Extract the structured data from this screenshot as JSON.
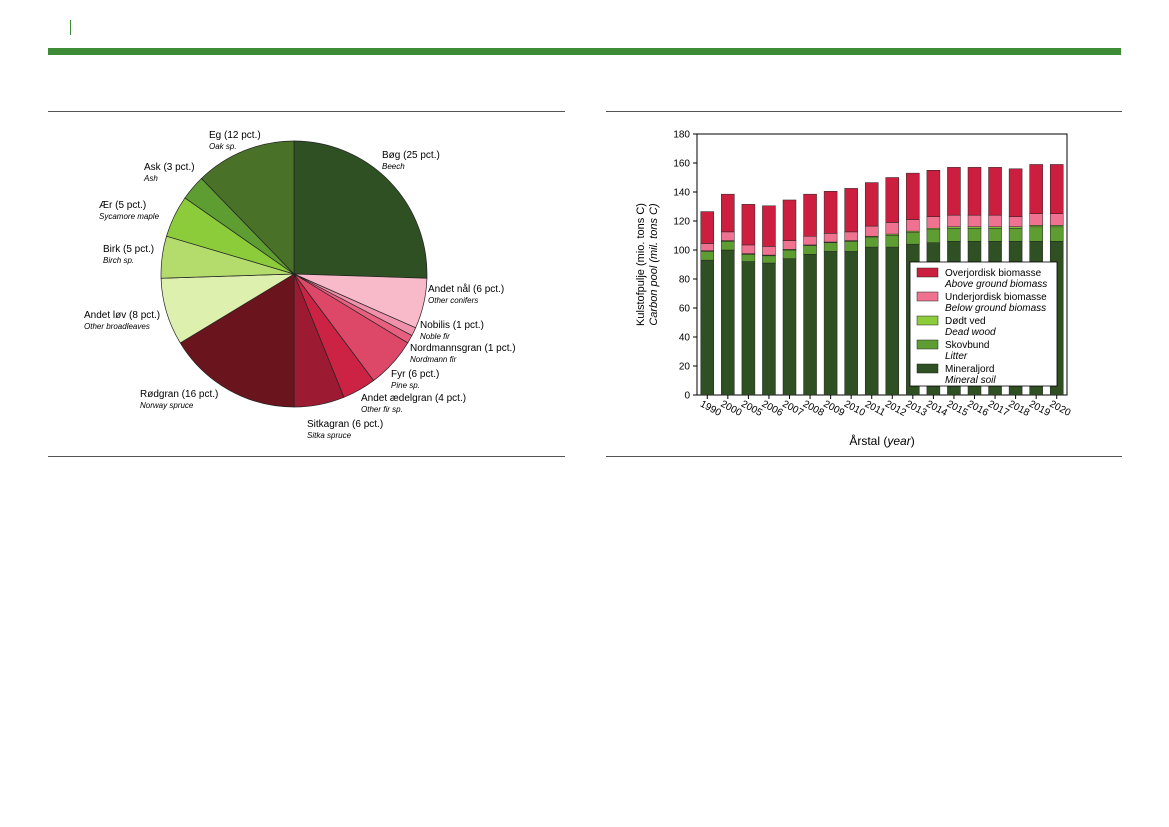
{
  "pie": {
    "chart_data": {
      "type": "pie",
      "slices": [
        {
          "label": "Bøg (25 pct.)",
          "sublabel": "Beech",
          "value": 25,
          "color": "#2f5022"
        },
        {
          "label": "Andet nål (6 pct.)",
          "sublabel": "Other conifers",
          "value": 6,
          "color": "#f8b9c9"
        },
        {
          "label": "Nobilis (1 pct.)",
          "sublabel": "Noble fir",
          "value": 1,
          "color": "#ef91ab"
        },
        {
          "label": "Nordmannsgran (1 pct.)",
          "sublabel": "Nordmann fir",
          "value": 1,
          "color": "#e8607f"
        },
        {
          "label": "Fyr (6 pct.)",
          "sublabel": "Pine sp.",
          "value": 6,
          "color": "#de4868"
        },
        {
          "label": "Andet ædelgran (4 pct.)",
          "sublabel": "Other fir sp.",
          "value": 4,
          "color": "#cc2243"
        },
        {
          "label": "Sitkagran (6 pct.)",
          "sublabel": "Sitka spruce",
          "value": 6,
          "color": "#9c1b33"
        },
        {
          "label": "Rødgran (16 pct.)",
          "sublabel": "Norway spruce",
          "value": 16,
          "color": "#6a151d"
        },
        {
          "label": "Andet løv (8 pct.)",
          "sublabel": "Other broadleaves",
          "value": 8,
          "color": "#ddf0ad"
        },
        {
          "label": "Birk (5 pct.)",
          "sublabel": "Birch sp.",
          "value": 5,
          "color": "#b3dc6d"
        },
        {
          "label": "Ær (5 pct.)",
          "sublabel": "Sycamore maple",
          "value": 5,
          "color": "#8ccb3a"
        },
        {
          "label": "Ask (3 pct.)",
          "sublabel": "Ash",
          "value": 3,
          "color": "#5e9d31"
        },
        {
          "label": "Eg (12 pct.)",
          "sublabel": "Oak sp.",
          "value": 12,
          "color": "#4a7128"
        }
      ]
    }
  },
  "bar": {
    "chart_data": {
      "type": "bar",
      "stacked": true,
      "categories": [
        "1990",
        "2000",
        "2005",
        "2006",
        "2007",
        "2008",
        "2009",
        "2010",
        "2011",
        "2012",
        "2013",
        "2014",
        "2015",
        "2016",
        "2017",
        "2018",
        "2019",
        "2020"
      ],
      "series": [
        {
          "name": "Mineraljord",
          "name_en": "Mineral soil",
          "color": "#2f5022",
          "values": [
            93,
            100,
            92,
            91,
            94,
            97,
            99,
            99,
            102,
            102,
            104,
            105,
            106,
            106,
            106,
            106,
            106,
            106
          ]
        },
        {
          "name": "Skovbund",
          "name_en": "Litter",
          "color": "#5e9d31",
          "values": [
            6,
            6,
            5,
            5,
            6,
            6,
            6,
            7,
            7,
            8,
            8,
            9,
            9,
            9,
            9,
            9,
            10,
            10
          ]
        },
        {
          "name": "Dødt ved",
          "name_en": "Dead wood",
          "color": "#8ccb3a",
          "values": [
            0.5,
            0.5,
            0.5,
            0.5,
            0.5,
            0.5,
            0.5,
            0.5,
            0.5,
            1,
            1,
            1,
            1,
            1,
            1,
            1,
            1,
            1
          ]
        },
        {
          "name": "Underjordisk biomasse",
          "name_en": "Below ground biomass",
          "color": "#ef7390",
          "values": [
            5,
            6,
            6,
            6,
            6,
            6,
            6,
            6,
            7,
            8,
            8,
            8,
            8,
            8,
            8,
            7,
            8,
            8
          ]
        },
        {
          "name": "Overjordisk biomasse",
          "name_en": "Above ground biomass",
          "color": "#cc1f3f",
          "values": [
            22,
            26,
            28,
            28,
            28,
            29,
            29,
            30,
            30,
            31,
            32,
            32,
            33,
            33,
            33,
            33,
            34,
            34
          ]
        }
      ],
      "ylabel": "Kulstofpulje (mio. tons C)",
      "ylabel_en": "Carbon pool (mil. tons C)",
      "xlabel": "Årstal",
      "xlabel_en": "year",
      "ylim": [
        0,
        180
      ],
      "yticks": [
        0,
        20,
        40,
        60,
        80,
        100,
        120,
        140,
        160,
        180
      ],
      "legend_position": "inside-right"
    }
  }
}
